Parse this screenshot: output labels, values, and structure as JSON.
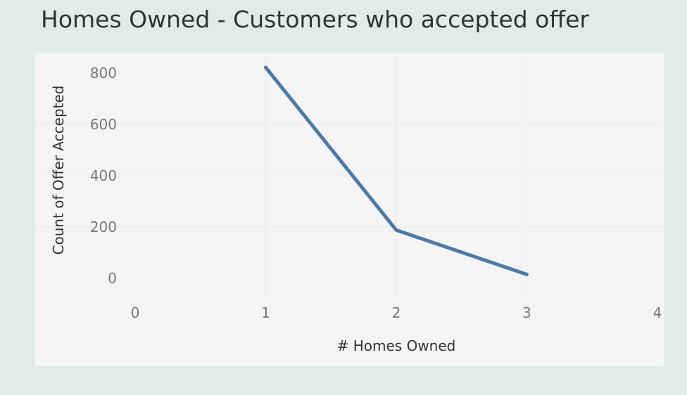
{
  "chart_data": {
    "type": "line",
    "title": "Homes Owned - Customers who accepted offer",
    "xlabel": "# Homes Owned",
    "ylabel": "Count of Offer Accepted",
    "x_ticks": [
      "0",
      "1",
      "2",
      "3",
      "4"
    ],
    "y_ticks": [
      "0",
      "200",
      "400",
      "600",
      "800"
    ],
    "xlim": [
      0,
      4
    ],
    "ylim": [
      0,
      800
    ],
    "grid": true,
    "line_color": "#4e79a7",
    "series": [
      {
        "x": [
          1,
          2,
          3
        ],
        "y": [
          822,
          188,
          15
        ]
      }
    ]
  }
}
